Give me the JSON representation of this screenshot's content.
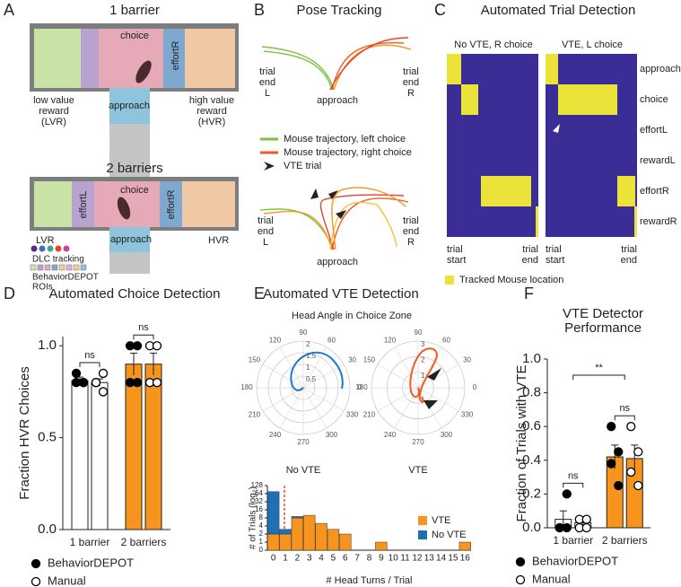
{
  "panel_labels": [
    "A",
    "B",
    "C",
    "D",
    "E",
    "F"
  ],
  "panel_a": {
    "top": {
      "title": "1 barrier",
      "choice": "choice",
      "effort": "effortR",
      "approach": "approach",
      "left_label": [
        "low value",
        "reward",
        "(LVR)"
      ],
      "right_label": [
        "high value",
        "reward",
        "(HVR)"
      ]
    },
    "bottom": {
      "title": "2 barriers",
      "choice": "choice",
      "effort_left": "effortL",
      "effort_right": "effortR",
      "approach": "approach",
      "left_label": "LVR",
      "right_label": "HVR"
    },
    "legend_dlc": "DLC tracking",
    "legend_roi": [
      "BehaviorDEPOT",
      "ROIs"
    ]
  },
  "panel_b": {
    "title": "Pose Tracking",
    "left_label": [
      "trial",
      "end",
      "L"
    ],
    "right_label": [
      "trial",
      "end",
      "R"
    ],
    "bottom_label": "approach",
    "legend": [
      "Mouse trajectory, left choice",
      "Mouse trajectory, right choice",
      "VTE trial"
    ]
  },
  "panel_c": {
    "title": "Automated Trial Detection",
    "subtitles": [
      "No VTE, R choice",
      "VTE, L choice"
    ],
    "rows": [
      "approach",
      "choice",
      "effortL",
      "rewardL",
      "effortR",
      "rewardR"
    ],
    "start_label": [
      "trial",
      "start"
    ],
    "end_label": [
      "trial",
      "end"
    ],
    "legend": "Tracked Mouse location"
  },
  "panel_e": {
    "subtitle": "Head Angle in Choice Zone",
    "plot_labels": [
      "No VTE",
      "VTE"
    ],
    "angle_ticks": [
      0,
      30,
      60,
      90,
      120,
      150,
      180,
      210,
      240,
      270,
      300,
      330
    ],
    "radial_ticks": [
      [
        0.5,
        1,
        1.5,
        2
      ],
      [
        1,
        2,
        3
      ]
    ]
  },
  "chart_data": [
    {
      "type": "bar",
      "title": "Automated Choice Detection",
      "y_label": "Fraction HVR Choices",
      "categories": [
        "1 barrier",
        "2 barriers"
      ],
      "category_colors": [
        "#ffffff",
        "#f7941d"
      ],
      "series": [
        {
          "name": "BehaviorDEPOT",
          "color": "#000000",
          "values": [
            0.81,
            0.9
          ],
          "errors": [
            0.02,
            0.06
          ],
          "points": [
            [
              0.8,
              0.8,
              0.85,
              0.8
            ],
            [
              1.0,
              1.0,
              0.8,
              0.8
            ]
          ]
        },
        {
          "name": "Manual",
          "color": "#ffffff",
          "values": [
            0.8,
            0.9
          ],
          "errors": [
            0.02,
            0.06
          ],
          "points": [
            [
              0.8,
              0.85,
              0.8,
              0.75
            ],
            [
              1.0,
              1.0,
              0.8,
              0.8
            ]
          ]
        }
      ],
      "significance": [
        "ns",
        "ns"
      ],
      "ylim": [
        0,
        1.05
      ],
      "yticks": [
        {
          "value": 0,
          "label": "0.0"
        },
        {
          "value": 0.5,
          "label": "0.5"
        },
        {
          "value": 1,
          "label": "1.0"
        }
      ]
    },
    {
      "type": "histogram",
      "title": "Automated VTE Detection",
      "x_label": "# Head Turns / Trial",
      "y_label": "# of Trials (log₂)",
      "categories": [
        "0",
        "1",
        "2",
        "3",
        "4",
        "5",
        "6",
        "7",
        "8",
        "9",
        "10",
        "11",
        "12",
        "13",
        "14",
        "15",
        "16"
      ],
      "series": [
        {
          "name": "VTE",
          "color": "#f7941d",
          "values": [
            2,
            2,
            8,
            10,
            5,
            3,
            2,
            0,
            0,
            1,
            0,
            0,
            0,
            0,
            0,
            0,
            1
          ]
        },
        {
          "name": "No VTE",
          "color": "#1f6fb4",
          "values": [
            74,
            1,
            1,
            0,
            0,
            0,
            0,
            0,
            0,
            0,
            0,
            0,
            0,
            0,
            0,
            0,
            0
          ]
        }
      ],
      "log_base": 2,
      "ylim": [
        0,
        128
      ],
      "yticks": [
        0,
        1,
        2,
        4,
        8,
        16,
        32,
        64,
        128
      ]
    },
    {
      "type": "bar",
      "title": [
        "VTE  Detector",
        "Performance"
      ],
      "y_label": "Fraction of Trials with VTE",
      "categories": [
        "1 barrier",
        "2 barriers"
      ],
      "category_colors": [
        "#ffffff",
        "#f7941d"
      ],
      "series": [
        {
          "name": "BehaviorDEPOT",
          "color": "#000000",
          "values": [
            0.05,
            0.42
          ],
          "errors": [
            0.05,
            0.07
          ],
          "points": [
            [
              0,
              0,
              0,
              0.2
            ],
            [
              0.6,
              0.45,
              0.38,
              0.25
            ]
          ]
        },
        {
          "name": "Manual",
          "color": "#ffffff",
          "values": [
            0.03,
            0.41
          ],
          "errors": [
            0.02,
            0.08
          ],
          "points": [
            [
              0,
              0,
              0.05,
              0.05
            ],
            [
              0.6,
              0.45,
              0.33,
              0.25
            ]
          ]
        }
      ],
      "significance": [
        "ns",
        "ns",
        "**"
      ],
      "ylim": [
        0,
        1
      ],
      "yticks": [
        {
          "value": 0,
          "label": "0.0"
        },
        {
          "value": 0.2,
          "label": "0.2"
        },
        {
          "value": 0.4,
          "label": "0.4"
        },
        {
          "value": 0.6,
          "label": "0.6"
        },
        {
          "value": 0.8,
          "label": "0.8"
        },
        {
          "value": 1,
          "label": "1.0"
        }
      ]
    }
  ]
}
